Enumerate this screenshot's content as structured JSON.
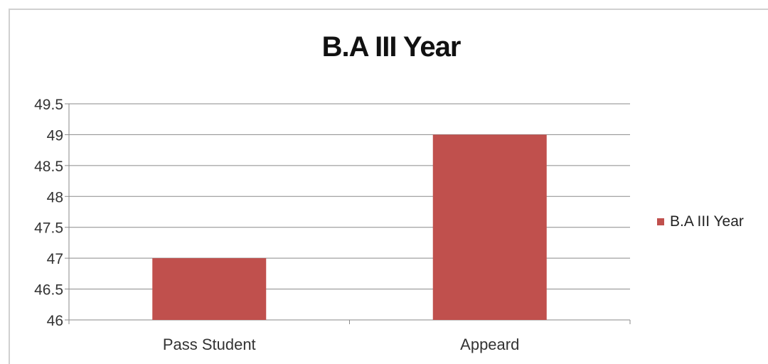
{
  "chart_data": {
    "type": "bar",
    "title": "B.A III Year",
    "categories": [
      "Pass Student",
      "Appeard"
    ],
    "series": [
      {
        "name": "B.A III Year",
        "values": [
          47,
          49
        ],
        "color": "#c0504d"
      }
    ],
    "ylim": [
      46,
      49.5
    ],
    "yticks": [
      "46",
      "46.5",
      "47",
      "47.5",
      "48",
      "48.5",
      "49",
      "49.5"
    ],
    "xlabel": "",
    "ylabel": "",
    "grid": true,
    "legend_position": "right"
  }
}
